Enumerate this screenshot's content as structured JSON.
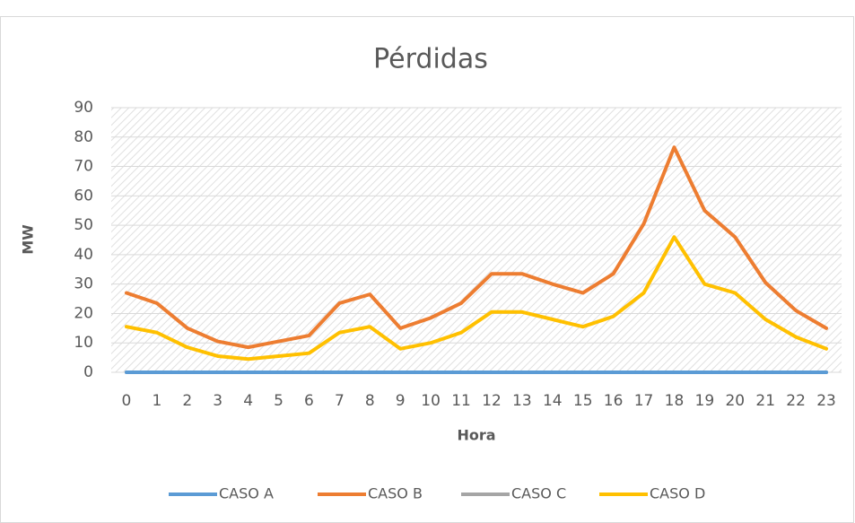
{
  "chart_data": {
    "type": "line",
    "title": "Pérdidas",
    "x_label": "Hora",
    "y_label": "MW",
    "categories": [
      0,
      1,
      2,
      3,
      4,
      5,
      6,
      7,
      8,
      9,
      10,
      11,
      12,
      13,
      14,
      15,
      16,
      17,
      18,
      19,
      20,
      21,
      22,
      23
    ],
    "series": [
      {
        "name": "CASO A",
        "color": "#5b9bd5",
        "values": [
          0,
          0,
          0,
          0,
          0,
          0,
          0,
          0,
          0,
          0,
          0,
          0,
          0,
          0,
          0,
          0,
          0,
          0,
          0,
          0,
          0,
          0,
          0,
          0
        ]
      },
      {
        "name": "CASO B",
        "color": "#ed7d31",
        "values": [
          27,
          23.5,
          15,
          10.5,
          8.5,
          10.5,
          12.5,
          23.5,
          26.5,
          15,
          18.5,
          23.5,
          33.5,
          33.5,
          30,
          27,
          33.5,
          50.5,
          76.5,
          55,
          46,
          30.5,
          21,
          15
        ]
      },
      {
        "name": "CASO C",
        "color": "#a5a5a5",
        "values": [
          0,
          0,
          0,
          0,
          0,
          0,
          0,
          0,
          0,
          0,
          0,
          0,
          0,
          0,
          0,
          0,
          0,
          0,
          0,
          0,
          0,
          0,
          0,
          0
        ]
      },
      {
        "name": "CASO D",
        "color": "#ffc000",
        "values": [
          15.5,
          13.5,
          8.5,
          5.5,
          4.5,
          5.5,
          6.5,
          13.5,
          15.5,
          8,
          10,
          13.5,
          20.5,
          20.5,
          18,
          15.5,
          19,
          27,
          46,
          30,
          27,
          18,
          12,
          8
        ]
      }
    ],
    "ylim": [
      0,
      90
    ],
    "yticks": [
      0,
      10,
      20,
      30,
      40,
      50,
      60,
      70,
      80,
      90
    ],
    "grid": true,
    "legend": "bottom"
  }
}
